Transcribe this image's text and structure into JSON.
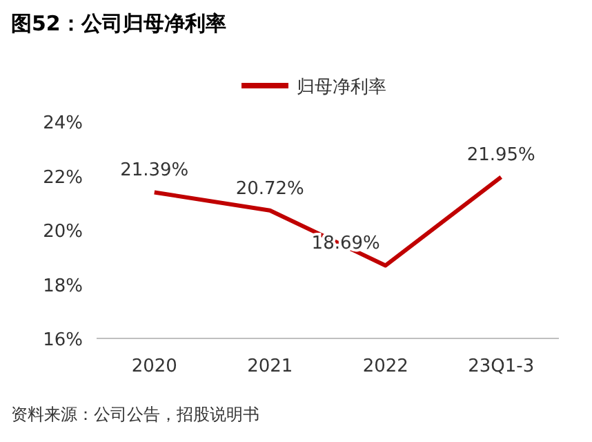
{
  "chart_data": {
    "type": "line",
    "title": "图52：公司归母净利率",
    "categories": [
      "2020",
      "2021",
      "2022",
      "23Q1-3"
    ],
    "series": [
      {
        "name": "归母净利率",
        "color": "#c00000",
        "values": [
          21.39,
          20.72,
          18.69,
          21.95
        ],
        "value_labels": [
          "21.39%",
          "20.72%",
          "18.69%",
          "21.95%"
        ]
      }
    ],
    "ylim": [
      16,
      24
    ],
    "yticks": [
      {
        "value": 16,
        "label": "16%"
      },
      {
        "value": 18,
        "label": "18%"
      },
      {
        "value": 20,
        "label": "20%"
      },
      {
        "value": 22,
        "label": "22%"
      },
      {
        "value": 24,
        "label": "24%"
      }
    ],
    "legend": "top",
    "annotations": [
      "资料来源：公司公告，招股说明书"
    ]
  }
}
